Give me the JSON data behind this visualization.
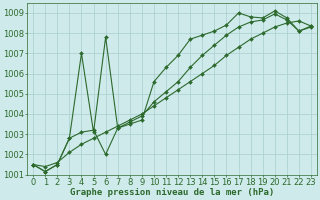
{
  "title": "Graphe pression niveau de la mer (hPa)",
  "background_color": "#ceeaea",
  "grid_color": "#aacece",
  "line_color": "#2d6a2d",
  "xlim": [
    -0.5,
    23.5
  ],
  "ylim": [
    1001,
    1009.5
  ],
  "xticks": [
    0,
    1,
    2,
    3,
    4,
    5,
    6,
    7,
    8,
    9,
    10,
    11,
    12,
    13,
    14,
    15,
    16,
    17,
    18,
    19,
    20,
    21,
    22,
    23
  ],
  "yticks": [
    1001,
    1002,
    1003,
    1004,
    1005,
    1006,
    1007,
    1008,
    1009
  ],
  "series1_spiky": [
    [
      0,
      1001.5
    ],
    [
      1,
      1001.15
    ],
    [
      2,
      1001.5
    ],
    [
      3,
      1002.8
    ],
    [
      4,
      1007.0
    ],
    [
      5,
      1003.1
    ],
    [
      6,
      1007.8
    ],
    [
      7,
      1003.3
    ],
    [
      8,
      1003.5
    ],
    [
      9,
      1003.7
    ],
    [
      10,
      1005.6
    ],
    [
      11,
      1006.3
    ],
    [
      12,
      1006.9
    ],
    [
      13,
      1007.7
    ],
    [
      14,
      1007.9
    ],
    [
      15,
      1008.1
    ],
    [
      16,
      1008.4
    ],
    [
      17,
      1009.0
    ],
    [
      18,
      1008.8
    ],
    [
      19,
      1008.75
    ],
    [
      20,
      1009.1
    ],
    [
      21,
      1008.75
    ],
    [
      22,
      1008.1
    ],
    [
      23,
      1008.3
    ]
  ],
  "series2_smooth": [
    [
      0,
      1001.5
    ],
    [
      1,
      1001.15
    ],
    [
      2,
      1001.5
    ],
    [
      3,
      1002.8
    ],
    [
      4,
      1003.1
    ],
    [
      5,
      1003.2
    ],
    [
      6,
      1002.0
    ],
    [
      7,
      1003.3
    ],
    [
      8,
      1003.6
    ],
    [
      9,
      1003.9
    ],
    [
      10,
      1004.6
    ],
    [
      11,
      1005.1
    ],
    [
      12,
      1005.6
    ],
    [
      13,
      1006.3
    ],
    [
      14,
      1006.9
    ],
    [
      15,
      1007.4
    ],
    [
      16,
      1007.9
    ],
    [
      17,
      1008.3
    ],
    [
      18,
      1008.55
    ],
    [
      19,
      1008.65
    ],
    [
      20,
      1008.95
    ],
    [
      21,
      1008.65
    ],
    [
      22,
      1008.1
    ],
    [
      23,
      1008.35
    ]
  ],
  "series3_linear": [
    [
      0,
      1001.5
    ],
    [
      1,
      1001.4
    ],
    [
      2,
      1001.6
    ],
    [
      3,
      1002.1
    ],
    [
      4,
      1002.5
    ],
    [
      5,
      1002.8
    ],
    [
      6,
      1003.1
    ],
    [
      7,
      1003.4
    ],
    [
      8,
      1003.7
    ],
    [
      9,
      1004.0
    ],
    [
      10,
      1004.4
    ],
    [
      11,
      1004.8
    ],
    [
      12,
      1005.2
    ],
    [
      13,
      1005.6
    ],
    [
      14,
      1006.0
    ],
    [
      15,
      1006.4
    ],
    [
      16,
      1006.9
    ],
    [
      17,
      1007.3
    ],
    [
      18,
      1007.7
    ],
    [
      19,
      1008.0
    ],
    [
      20,
      1008.3
    ],
    [
      21,
      1008.5
    ],
    [
      22,
      1008.6
    ],
    [
      23,
      1008.35
    ]
  ],
  "marker_size": 2.0,
  "font_size": 6,
  "title_fontsize": 6.5
}
